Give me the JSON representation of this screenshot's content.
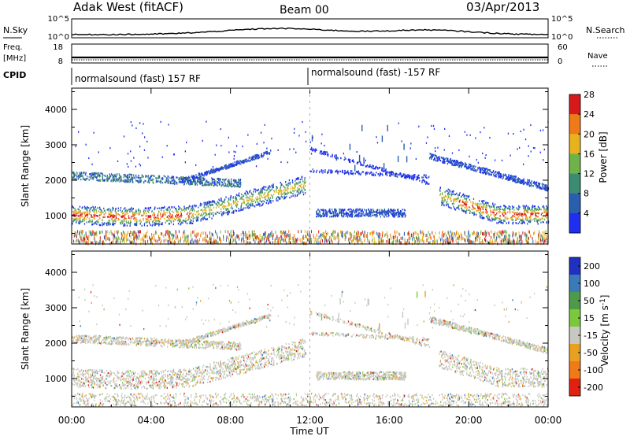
{
  "header": {
    "title": "Adak West (fitACF)",
    "beam": "Beam 00",
    "date": "03/Apr/2013"
  },
  "nsky_panel": {
    "left_label": "N.Sky",
    "right_label": "N.Search",
    "left_ticks": [
      "10^5",
      "10^0"
    ],
    "right_ticks": [
      "10^5",
      "10^0"
    ]
  },
  "freq_panel": {
    "left_label_1": "Freq.",
    "left_label_2": "[MHz]",
    "right_label": "Nave",
    "left_ticks": [
      "18",
      "8"
    ],
    "right_ticks": [
      "60",
      "0"
    ]
  },
  "cpid_panel": {
    "label": "CPID",
    "segments": [
      {
        "text": "normalsound (fast) 157 RF",
        "start": "00:00"
      },
      {
        "text": "normalsound (fast) -157 RF",
        "start": "12:00"
      }
    ]
  },
  "chart_data": [
    {
      "type": "heatmap",
      "name": "power",
      "ylabel": "Slant Range [km]",
      "colorbar_label": "Power [dB]",
      "ylim": [
        200,
        4600
      ],
      "yticks": [
        "1000",
        "2000",
        "3000",
        "4000"
      ],
      "colorbar_ticks": [
        "4",
        "8",
        "12",
        "16",
        "20",
        "24",
        "28"
      ],
      "colorbar_colors": [
        "#1f2ff0",
        "#2a5fb0",
        "#3c8c74",
        "#6fb24a",
        "#e8b21e",
        "#ef7a18",
        "#d7191c"
      ],
      "xticks": [
        "00:00",
        "04:00",
        "08:00",
        "12:00",
        "16:00",
        "20:00",
        "00:00"
      ]
    },
    {
      "type": "heatmap",
      "name": "velocity",
      "ylabel": "Slant Range [km]",
      "colorbar_label": "Velocity [m s^-1]",
      "ylim": [
        200,
        4600
      ],
      "yticks": [
        "1000",
        "2000",
        "3000",
        "4000"
      ],
      "colorbar_ticks": [
        "200",
        "100",
        "50",
        "15",
        "-15",
        "-50",
        "-100",
        "-200"
      ],
      "colorbar_colors": [
        "#2030c0",
        "#3a7ab8",
        "#4f9a4a",
        "#7cc83c",
        "#c8c8c0",
        "#e8a020",
        "#ef7a18",
        "#e02010"
      ],
      "xticks": [
        "00:00",
        "04:00",
        "08:00",
        "12:00",
        "16:00",
        "20:00",
        "00:00"
      ],
      "xlabel": "Time UT"
    }
  ]
}
